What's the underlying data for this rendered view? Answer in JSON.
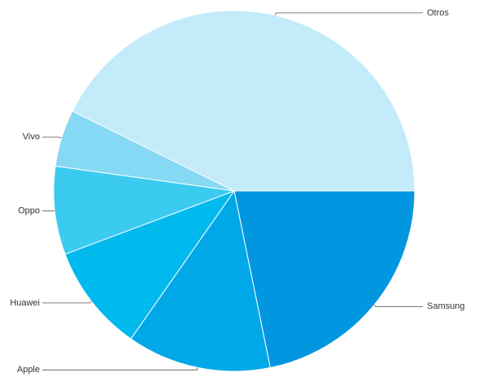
{
  "chart_data": {
    "type": "pie",
    "categories": [
      "Samsung",
      "Apple",
      "Huawei",
      "Oppo",
      "Vivo",
      "Otros"
    ],
    "values": [
      21.8,
      12.9,
      9.6,
      7.9,
      5.1,
      42.7
    ],
    "colors": [
      "#0096e0",
      "#00a8e8",
      "#00b9ed",
      "#3ccbf0",
      "#86d9f5",
      "#c3ebfa"
    ]
  }
}
